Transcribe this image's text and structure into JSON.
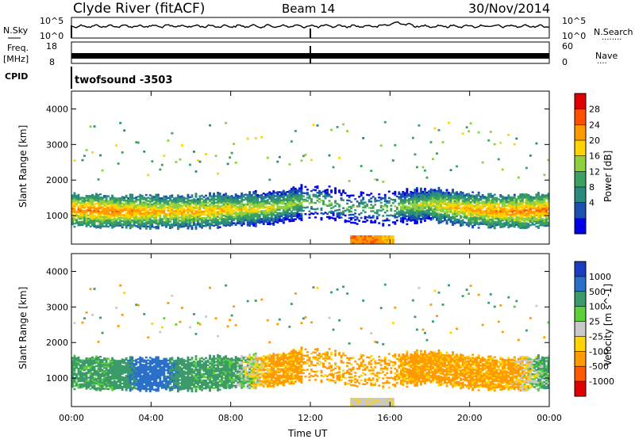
{
  "header": {
    "station": "Clyde River (fitACF)",
    "beam": "Beam 14",
    "date": "30/Nov/2014"
  },
  "left_labels": {
    "nsky": "N.Sky",
    "freq": "Freq.",
    "freq_unit": "[MHz]",
    "cpid": "CPID"
  },
  "right_labels": {
    "nsearch": "N.Search",
    "nsearch_dots": "........",
    "nave": "Nave",
    "nave_dots": "...."
  },
  "cpid_text": "twofsound -3503",
  "noise_panel": {
    "left_ticks": [
      "10^5",
      "10^0"
    ],
    "right_ticks": [
      "10^5",
      "10^0"
    ]
  },
  "freq_panel": {
    "left_ticks": [
      "18",
      "8"
    ],
    "right_ticks": [
      "60",
      "0"
    ]
  },
  "x_axis": {
    "ticks": [
      "00:00",
      "04:00",
      "08:00",
      "12:00",
      "16:00",
      "20:00",
      "00:00"
    ],
    "label": "Time UT"
  },
  "range_axis": {
    "label": "Slant Range [km]",
    "ticks": [
      1000,
      2000,
      3000,
      4000
    ],
    "ylim": [
      200,
      4500
    ]
  },
  "power_scale": {
    "label": "Power [dB]",
    "ticks": [
      "28",
      "24",
      "20",
      "16",
      "12",
      "8",
      "4"
    ],
    "colors": [
      "#e00000",
      "#ff5000",
      "#ff9a00",
      "#ffd400",
      "#8fd040",
      "#3ca060",
      "#2a8a80",
      "#1a50b0",
      "#0000e8"
    ]
  },
  "velocity_scale": {
    "label": "Velocity [m s^-1]",
    "ticks": [
      "1000",
      "500",
      "100",
      "25",
      "-25",
      "-100",
      "-500",
      "-1000"
    ],
    "colors": [
      "#1a3cc0",
      "#2a70c8",
      "#3c9a6a",
      "#5ccf3a",
      "#c8c8c8",
      "#ffd400",
      "#ff9a00",
      "#ff5a00",
      "#e00000"
    ]
  },
  "chart_data": [
    {
      "type": "heatmap",
      "title": "Power [dB]",
      "xlabel": "Time UT",
      "ylabel": "Slant Range [km]",
      "xlim": [
        "00:00",
        "24:00"
      ],
      "ylim": [
        200,
        4500
      ],
      "series": [
        {
          "band": "main_echo",
          "x": [
            "00:00",
            "02:00",
            "04:00",
            "06:00",
            "08:00",
            "10:00",
            "12:00",
            "14:00",
            "16:00",
            "18:00",
            "20:00",
            "22:00",
            "24:00"
          ],
          "center_km": [
            1150,
            1100,
            1100,
            1100,
            1150,
            1200,
            1400,
            1200,
            1200,
            1300,
            1150,
            1100,
            1150
          ],
          "peak_db": [
            28,
            28,
            26,
            26,
            24,
            22,
            18,
            16,
            18,
            22,
            26,
            28,
            28
          ]
        },
        {
          "band": "near_range_patch",
          "x": [
            "14:00",
            "15:00",
            "16:00"
          ],
          "center_km": [
            300,
            300,
            300
          ],
          "peak_db": [
            28,
            28,
            24
          ]
        }
      ]
    },
    {
      "type": "heatmap",
      "title": "Velocity [m s^-1]",
      "xlabel": "Time UT",
      "ylabel": "Slant Range [km]",
      "xlim": [
        "00:00",
        "24:00"
      ],
      "ylim": [
        200,
        4500
      ],
      "series": [
        {
          "band": "main_echo",
          "x": [
            "00:00",
            "02:00",
            "04:00",
            "06:00",
            "08:00",
            "10:00",
            "12:00",
            "14:00",
            "16:00",
            "18:00",
            "20:00",
            "22:00",
            "24:00"
          ],
          "velocity_ms": [
            100,
            100,
            500,
            100,
            100,
            -100,
            -100,
            -100,
            -100,
            -100,
            -100,
            -100,
            100
          ]
        }
      ]
    }
  ]
}
